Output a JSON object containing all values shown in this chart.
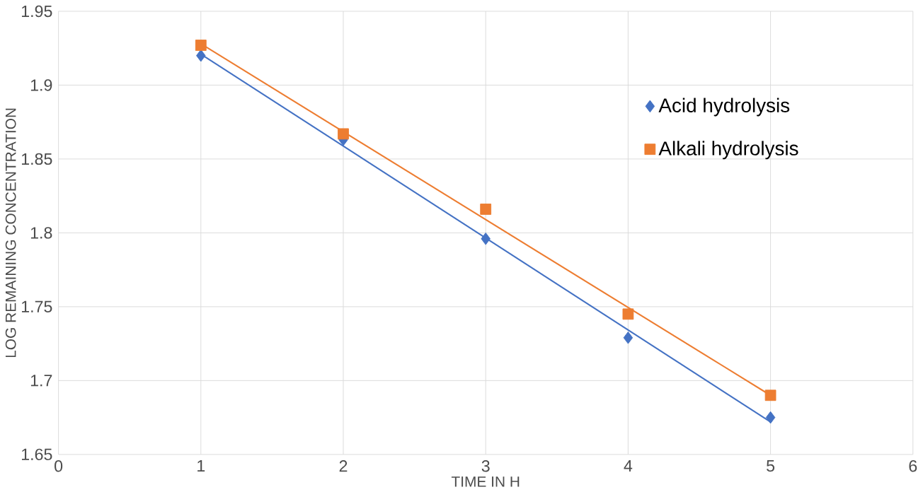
{
  "chart_data": {
    "type": "scatter",
    "xlabel": "TIME IN H",
    "ylabel": "LOG REMAINING CONCENTRATION",
    "xlim": [
      0,
      6
    ],
    "xticks": [
      0,
      1,
      2,
      3,
      4,
      5,
      6
    ],
    "ylim": [
      1.65,
      1.95
    ],
    "yticks": [
      1.65,
      1.7,
      1.75,
      1.8,
      1.85,
      1.9,
      1.95
    ],
    "grid": true,
    "legend": "right",
    "series": [
      {
        "name": "Acid hydrolysis",
        "marker": "diamond",
        "color": "#4472c4",
        "x": [
          1,
          2,
          3,
          4,
          5
        ],
        "values": [
          1.92,
          1.863,
          1.796,
          1.729,
          1.675
        ]
      },
      {
        "name": "Alkali hydrolysis",
        "marker": "square",
        "color": "#ed7d31",
        "x": [
          1,
          2,
          3,
          4,
          5
        ],
        "values": [
          1.927,
          1.867,
          1.816,
          1.745,
          1.69
        ]
      },
      {
        "type": "line",
        "color": "#4472c4",
        "x": [
          1,
          5
        ],
        "values": [
          1.921,
          1.672
        ]
      },
      {
        "type": "line",
        "color": "#ed7d31",
        "x": [
          1,
          5
        ],
        "values": [
          1.928,
          1.69
        ]
      }
    ]
  }
}
